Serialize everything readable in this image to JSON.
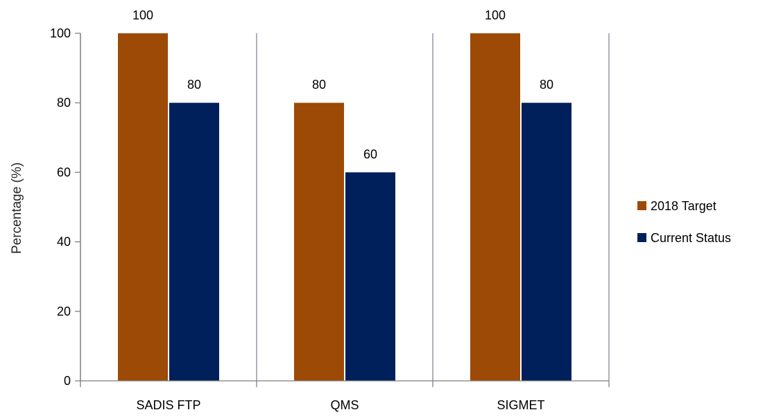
{
  "chart_data": {
    "type": "bar",
    "title": "",
    "xlabel": "",
    "ylabel": "Percentage (%)",
    "ylim": [
      0,
      100
    ],
    "yticks": [
      0,
      20,
      40,
      60,
      80,
      100
    ],
    "grid": "vertical category separators",
    "legend_position": "right",
    "categories": [
      "SADIS FTP",
      "QMS",
      "SIGMET"
    ],
    "series": [
      {
        "name": "2018 Target",
        "color": "#9C4A06",
        "values": [
          100,
          80,
          100
        ]
      },
      {
        "name": "Current Status",
        "color": "#00205B",
        "values": [
          80,
          60,
          80
        ]
      }
    ],
    "data_labels": true
  }
}
